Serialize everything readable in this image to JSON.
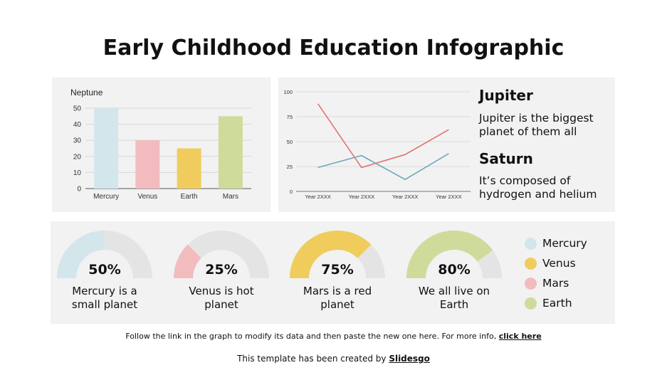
{
  "title": "Early Childhood Education Infographic",
  "colors": {
    "mercury": "#d3e6ec",
    "venus": "#f2bcbf",
    "earth_bar": "#f0cc5d",
    "mars_bar": "#cfdb9b",
    "jupiter": "#e37373",
    "saturn": "#6aabbb",
    "donut_track": "#e4e4e4"
  },
  "chart_data": [
    {
      "type": "bar",
      "title": "Neptune",
      "categories": [
        "Mercury",
        "Venus",
        "Earth",
        "Mars"
      ],
      "values": [
        50,
        30,
        25,
        45
      ],
      "ylim": [
        0,
        50
      ],
      "yticks": [
        0,
        10,
        20,
        30,
        40,
        50
      ],
      "grid": true
    },
    {
      "type": "line",
      "categories": [
        "Year 2XXX",
        "Year 2XXX",
        "Year 2XXX",
        "Year 2XXX"
      ],
      "ylim": [
        0,
        100
      ],
      "yticks": [
        0,
        25,
        50,
        75,
        100
      ],
      "grid": true,
      "series": [
        {
          "name": "Jupiter",
          "values": [
            88,
            24,
            37,
            62
          ]
        },
        {
          "name": "Saturn",
          "values": [
            24,
            36,
            12,
            38
          ]
        }
      ]
    },
    {
      "type": "pie",
      "style": "half-donut",
      "items": [
        {
          "percent": 50,
          "label": "50%",
          "caption": [
            "Mercury is a",
            "small planet"
          ]
        },
        {
          "percent": 25,
          "label": "25%",
          "caption": [
            "Venus is hot",
            "planet"
          ]
        },
        {
          "percent": 75,
          "label": "75%",
          "caption": [
            "Mars is a red",
            "planet"
          ]
        },
        {
          "percent": 80,
          "label": "80%",
          "caption": [
            "We all live on",
            "Earth"
          ]
        }
      ]
    }
  ],
  "side": {
    "jupiter_head": "Jupiter",
    "jupiter_text": "Jupiter  is the biggest planet of them all",
    "saturn_head": "Saturn",
    "saturn_text": "It’s composed of hydrogen and helium"
  },
  "legend": [
    "Mercury",
    "Venus",
    "Mars",
    "Earth"
  ],
  "footer": {
    "line1": "Follow the link in the graph to modify its data and then paste the new one here. For more info,",
    "link1": "click here",
    "line2": "This template has been created by",
    "link2": "Slidesgo"
  }
}
